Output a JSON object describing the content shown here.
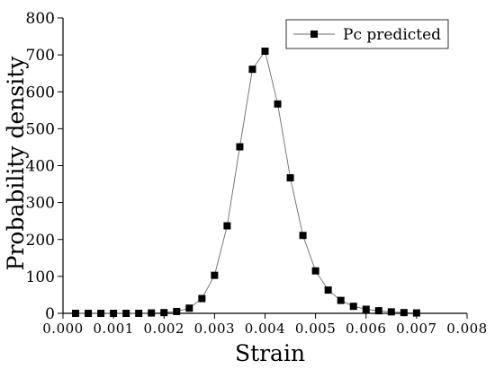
{
  "chart_data": {
    "type": "line",
    "xlabel": "Strain",
    "ylabel": "Probability density",
    "xlim": [
      0.0,
      0.008
    ],
    "ylim": [
      0,
      800
    ],
    "x_ticks": [
      "0.000",
      "0.001",
      "0.002",
      "0.003",
      "0.004",
      "0.005",
      "0.006",
      "0.007",
      "0.008"
    ],
    "x_tick_values": [
      0.0,
      0.001,
      0.002,
      0.003,
      0.004,
      0.005,
      0.006,
      0.007,
      0.008
    ],
    "y_ticks": [
      "0",
      "100",
      "200",
      "300",
      "400",
      "500",
      "600",
      "700",
      "800"
    ],
    "y_tick_values": [
      0,
      100,
      200,
      300,
      400,
      500,
      600,
      700,
      800
    ],
    "legend_position": "top-right",
    "grid": false,
    "series": [
      {
        "name": "Pc predicted",
        "marker": "square",
        "color": "#000000",
        "line_color": "#6b6b6b",
        "x": [
          0.00025,
          0.0005,
          0.00075,
          0.001,
          0.00125,
          0.0015,
          0.00175,
          0.002,
          0.00225,
          0.0025,
          0.00275,
          0.003,
          0.00325,
          0.0035,
          0.00375,
          0.004,
          0.00425,
          0.0045,
          0.00475,
          0.005,
          0.00525,
          0.0055,
          0.00575,
          0.006,
          0.00625,
          0.0065,
          0.00675,
          0.007
        ],
        "y": [
          0,
          0,
          0,
          0,
          0,
          0,
          1,
          2,
          5,
          14,
          40,
          103,
          237,
          451,
          661,
          710,
          567,
          367,
          211,
          115,
          63,
          35,
          19,
          11,
          7,
          4,
          2,
          1
        ]
      }
    ]
  }
}
